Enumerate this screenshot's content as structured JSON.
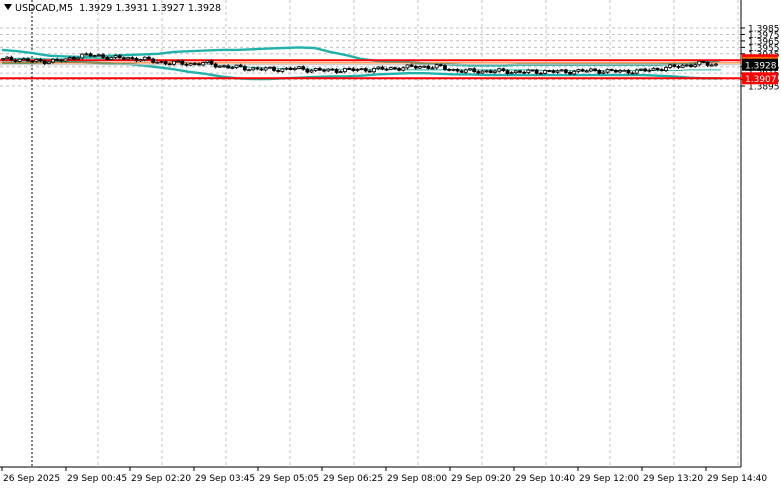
{
  "header": {
    "symbol_label": "USDCAD,M5",
    "ohlc_label": "1.3929 1.3931 1.3927 1.3928"
  },
  "colors": {
    "background": "#ffffff",
    "grid": "#c0c0c0",
    "bollinger": "#20b2aa",
    "level_line": "#ff0000",
    "ask_line": "#ff6600",
    "bid_line": "#c0c0c0",
    "candle": "#000000",
    "axis_text": "#000000"
  },
  "price_axis": {
    "ticks": [
      "1.3985",
      "1.3975",
      "1.3965",
      "1.3955",
      "1.3945",
      "1.3925",
      "1.3915",
      "1.3905",
      "1.3895"
    ]
  },
  "time_axis": {
    "ticks": [
      "26 Sep 2025",
      "29 Sep 00:45",
      "29 Sep 02:20",
      "29 Sep 03:45",
      "29 Sep 05:05",
      "29 Sep 06:25",
      "29 Sep 08:00",
      "29 Sep 09:20",
      "29 Sep 10:40",
      "29 Sep 12:00",
      "29 Sep 13:20",
      "29 Sep 14:40"
    ]
  },
  "price_tags": {
    "upper_level": "1.3935",
    "ask": "1.3931",
    "bid": "1.3928",
    "lower_level": "1.3907"
  },
  "chart_data": {
    "type": "candlestick",
    "symbol": "USDCAD",
    "timeframe": "M5",
    "last_bar": {
      "open": 1.3929,
      "high": 1.3931,
      "low": 1.3927,
      "close": 1.3928
    },
    "ylim": [
      1.3891,
      1.3992
    ],
    "grid": true,
    "horizontal_levels": [
      1.3935,
      1.3907
    ],
    "ask_price": 1.3931,
    "bid_price": 1.3928,
    "bollinger_upper": [
      1.3951,
      1.3949,
      1.3946,
      1.3942,
      1.3941,
      1.394,
      1.3941,
      1.3942,
      1.3943,
      1.3944,
      1.3945,
      1.3948,
      1.3949,
      1.395,
      1.3951,
      1.3951,
      1.3952,
      1.3953,
      1.3954,
      1.3955,
      1.3954,
      1.3948,
      1.3943,
      1.3937,
      1.3934,
      1.3933,
      1.3932,
      1.393,
      1.3929,
      1.3928,
      1.3927,
      1.3927,
      1.3927,
      1.3928,
      1.3928,
      1.3928,
      1.3928,
      1.3928,
      1.3928,
      1.3928,
      1.3928,
      1.3928,
      1.3928,
      1.3929,
      1.393,
      1.3932,
      1.3935
    ],
    "bollinger_middle": [
      1.3937,
      1.3938,
      1.3938,
      1.3937,
      1.3937,
      1.3938,
      1.3938,
      1.3937,
      1.3936,
      1.3936,
      1.3935,
      1.3933,
      1.3931,
      1.3929,
      1.3927,
      1.3925,
      1.3924,
      1.3923,
      1.3922,
      1.3922,
      1.3921,
      1.3921,
      1.3921,
      1.3921,
      1.3921,
      1.3921,
      1.392,
      1.392,
      1.392,
      1.392,
      1.392,
      1.392,
      1.392,
      1.392,
      1.392,
      1.3919,
      1.3919,
      1.3919,
      1.3919,
      1.3919,
      1.3919,
      1.3919,
      1.3919,
      1.3919,
      1.392,
      1.392,
      1.392
    ],
    "bollinger_lower": [
      1.3931,
      1.3931,
      1.3931,
      1.3932,
      1.3932,
      1.3932,
      1.3931,
      1.393,
      1.3929,
      1.3927,
      1.3924,
      1.3921,
      1.3917,
      1.3914,
      1.391,
      1.3907,
      1.3906,
      1.3906,
      1.3907,
      1.3908,
      1.3909,
      1.391,
      1.391,
      1.3911,
      1.3913,
      1.3914,
      1.3915,
      1.3915,
      1.3914,
      1.3913,
      1.3913,
      1.3912,
      1.3912,
      1.3912,
      1.3912,
      1.3912,
      1.3912,
      1.3912,
      1.3912,
      1.3912,
      1.3912,
      1.3912,
      1.3911,
      1.391,
      1.3908,
      1.3907,
      1.3907
    ],
    "closes": [
      1.3936,
      1.3937,
      1.3933,
      1.3934,
      1.3935,
      1.3943,
      1.3942,
      1.3939,
      1.3938,
      1.3937,
      1.3932,
      1.3931,
      1.3929,
      1.3931,
      1.3926,
      1.3924,
      1.3922,
      1.3921,
      1.3921,
      1.3922,
      1.392,
      1.3919,
      1.392,
      1.392,
      1.3921,
      1.3922,
      1.3924,
      1.3925,
      1.3925,
      1.392,
      1.3918,
      1.3918,
      1.3918,
      1.3917,
      1.3917,
      1.3918,
      1.3917,
      1.3918,
      1.3919,
      1.3918,
      1.3918,
      1.3918,
      1.3921,
      1.3924,
      1.3927,
      1.393,
      1.3928
    ]
  }
}
